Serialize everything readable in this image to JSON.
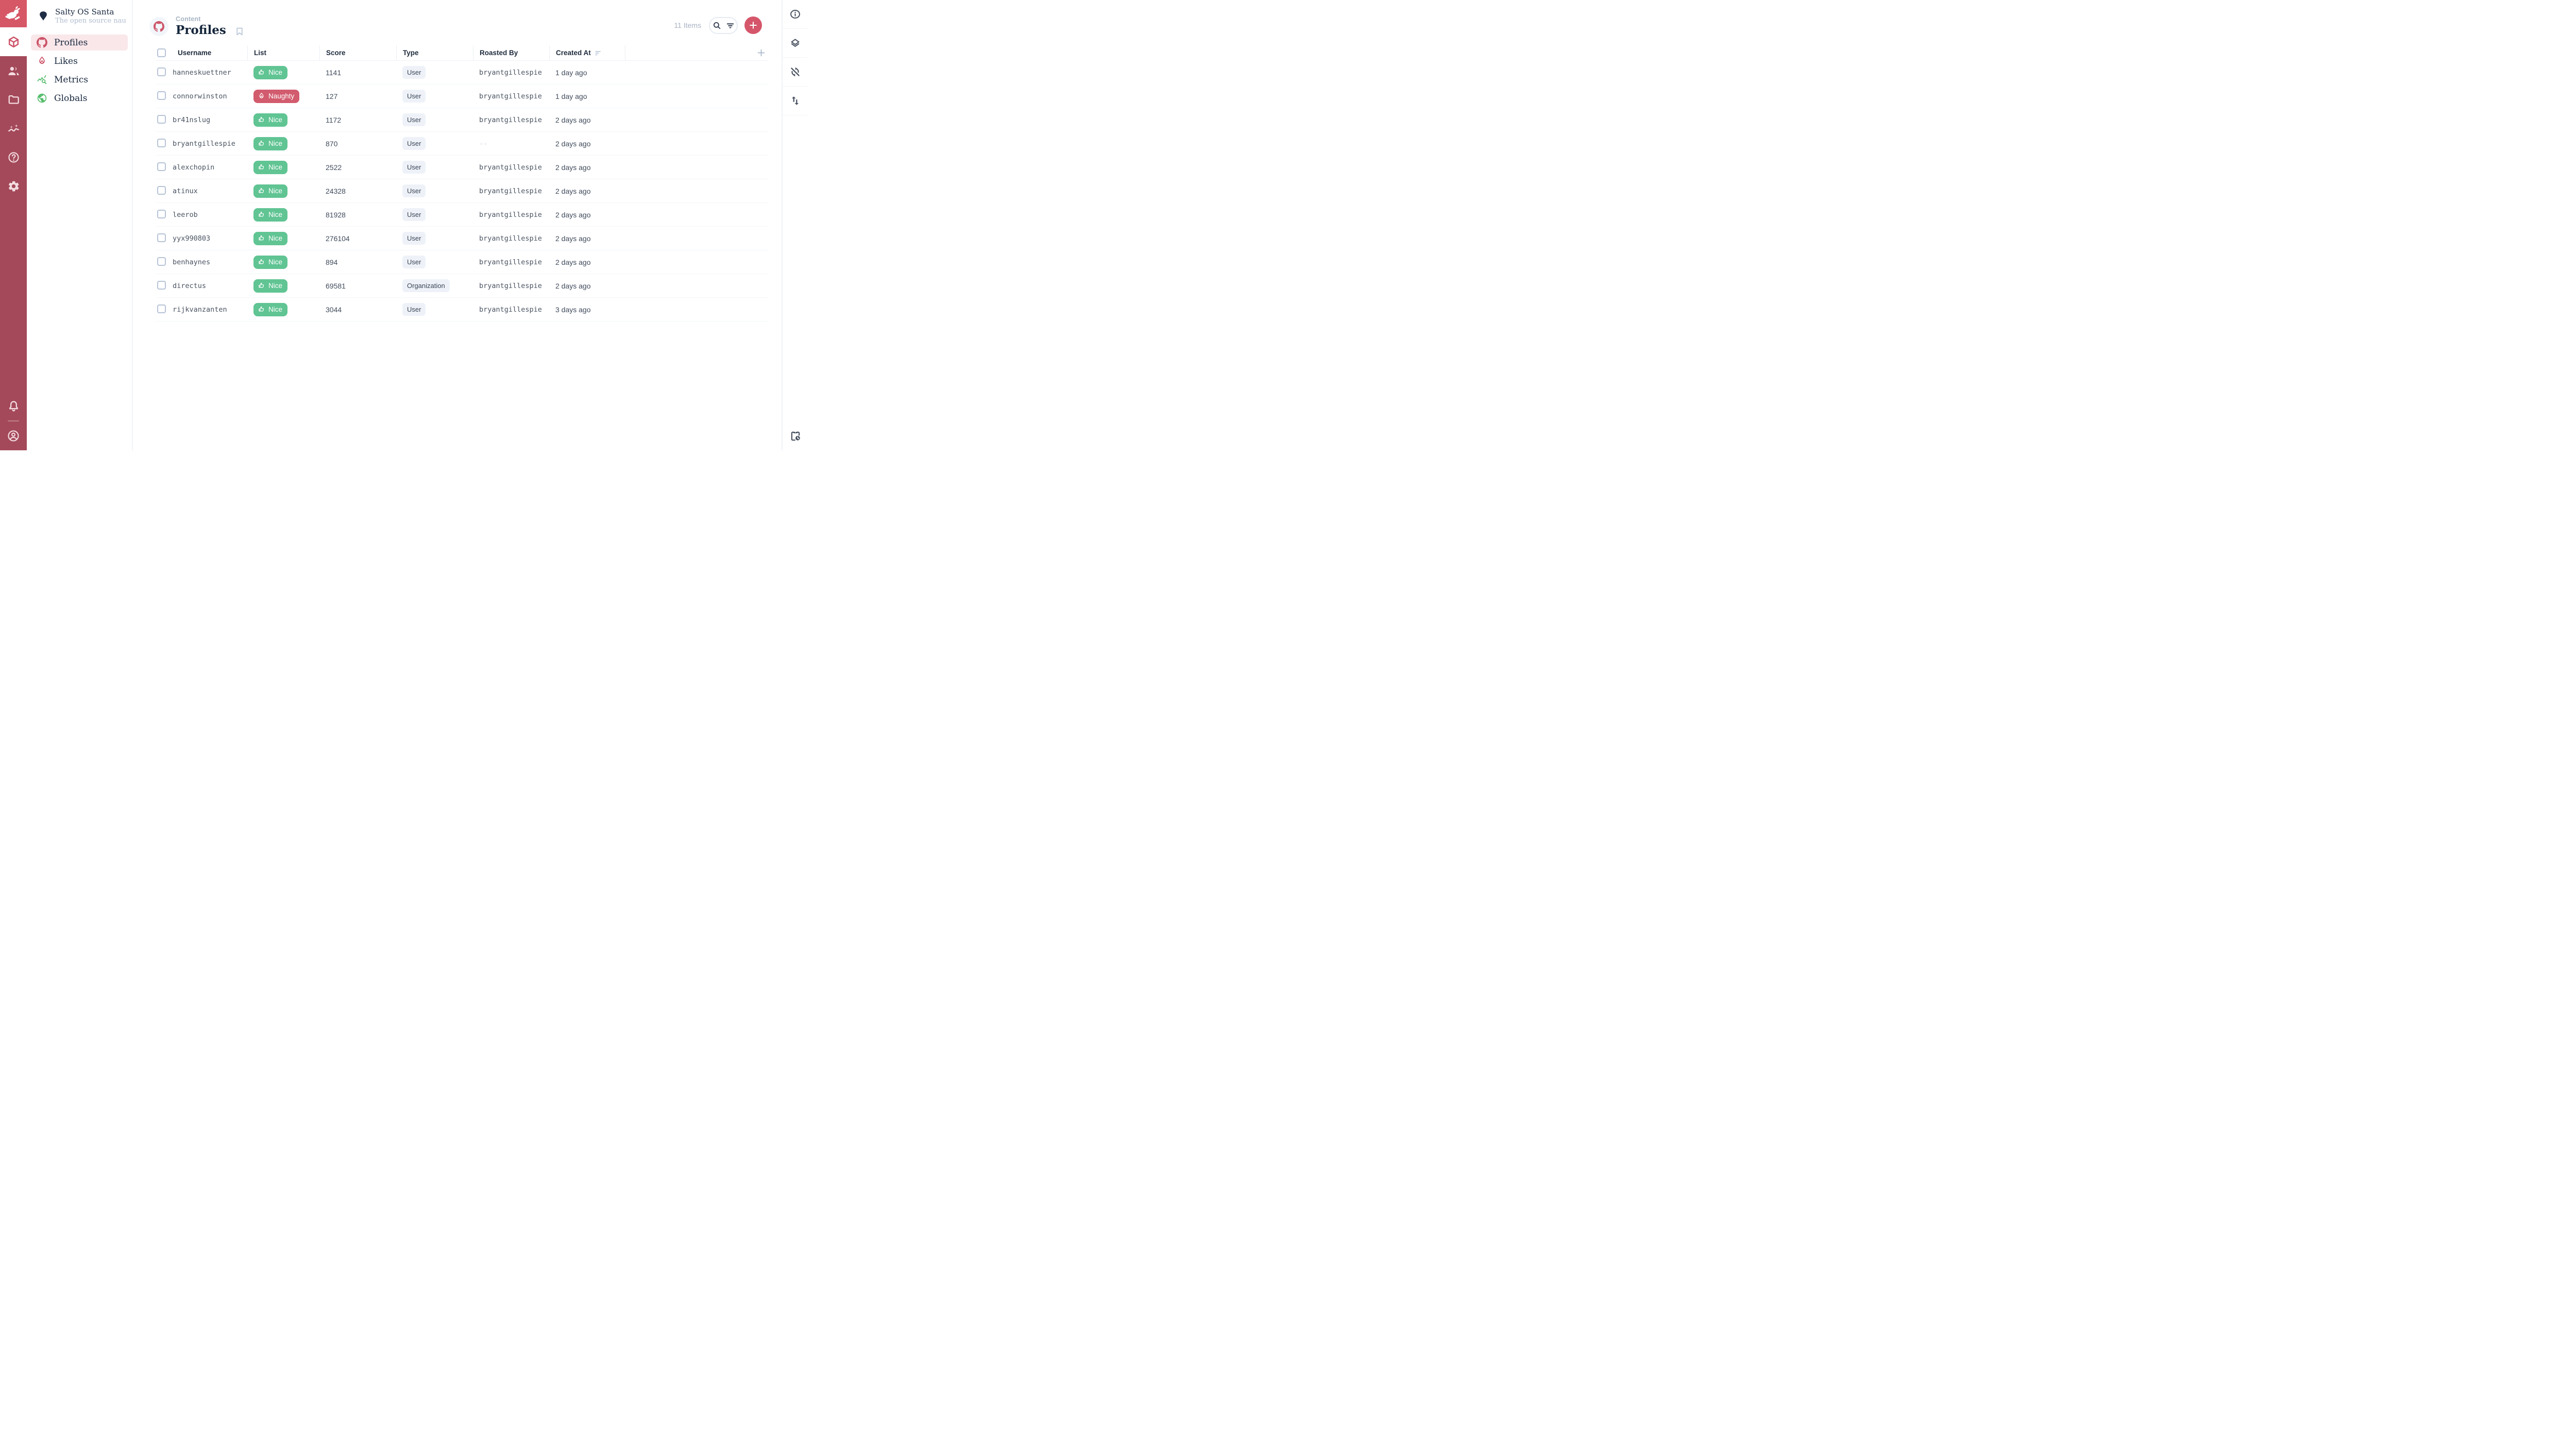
{
  "colors": {
    "module_bar_bg": "#A4495A",
    "logo_tile_bg": "#D65766",
    "accent_red": "#CC5468",
    "accent_green": "#57BE6E",
    "nav_active_bg": "#F9E7EA",
    "nice_badge_bg": "#60C493",
    "naughty_badge_bg": "#D25B6E",
    "chip_bg": "#EEF2F8",
    "add_button_bg": "#D5566A"
  },
  "module_bar": {
    "modules": [
      {
        "name": "content-module",
        "icon": "box-icon",
        "active": true
      },
      {
        "name": "user-directory-module",
        "icon": "people-icon",
        "active": false
      },
      {
        "name": "file-library-module",
        "icon": "folder-icon",
        "active": false
      },
      {
        "name": "insights-module",
        "icon": "insights-icon",
        "active": false
      },
      {
        "name": "documentation-module",
        "icon": "help-icon",
        "active": false
      },
      {
        "name": "settings-module",
        "icon": "gear-icon",
        "active": false
      }
    ],
    "bottom": [
      {
        "name": "notifications-button",
        "icon": "bell-icon"
      },
      {
        "name": "account-button",
        "icon": "account-icon"
      }
    ]
  },
  "sidebar": {
    "project_name": "Salty OS Santa",
    "project_tagline": "The open source naug...",
    "project_icon": "diamond-icon",
    "items": [
      {
        "label": "Profiles",
        "icon": "github-icon",
        "icon_color": "#CC5468",
        "active": true
      },
      {
        "label": "Likes",
        "icon": "fire-icon",
        "icon_color": "#CC5468",
        "active": false
      },
      {
        "label": "Metrics",
        "icon": "query-stats-icon",
        "icon_color": "#57BE6E",
        "active": false
      },
      {
        "label": "Globals",
        "icon": "globe-icon",
        "icon_color": "#57BE6E",
        "active": false
      }
    ]
  },
  "header": {
    "breadcrumb": "Content",
    "title": "Profiles",
    "title_icon": "github-icon",
    "items_count": "11 Items"
  },
  "table": {
    "columns": [
      {
        "label": "Username",
        "sorted": false
      },
      {
        "label": "List",
        "sorted": false
      },
      {
        "label": "Score",
        "sorted": false
      },
      {
        "label": "Type",
        "sorted": false
      },
      {
        "label": "Roasted By",
        "sorted": false
      },
      {
        "label": "Created At",
        "sorted": true
      }
    ],
    "rows": [
      {
        "username": "hanneskuettner",
        "list": "Nice",
        "score": "1141",
        "type": "User",
        "roasted_by": "bryantgillespie",
        "created_at": "1 day ago"
      },
      {
        "username": "connorwinston",
        "list": "Naughty",
        "score": "127",
        "type": "User",
        "roasted_by": "bryantgillespie",
        "created_at": "1 day ago"
      },
      {
        "username": "br41nslug",
        "list": "Nice",
        "score": "1172",
        "type": "User",
        "roasted_by": "bryantgillespie",
        "created_at": "2 days ago"
      },
      {
        "username": "bryantgillespie",
        "list": "Nice",
        "score": "870",
        "type": "User",
        "roasted_by": "--",
        "created_at": "2 days ago"
      },
      {
        "username": "alexchopin",
        "list": "Nice",
        "score": "2522",
        "type": "User",
        "roasted_by": "bryantgillespie",
        "created_at": "2 days ago"
      },
      {
        "username": "atinux",
        "list": "Nice",
        "score": "24328",
        "type": "User",
        "roasted_by": "bryantgillespie",
        "created_at": "2 days ago"
      },
      {
        "username": "leerob",
        "list": "Nice",
        "score": "81928",
        "type": "User",
        "roasted_by": "bryantgillespie",
        "created_at": "2 days ago"
      },
      {
        "username": "yyx990803",
        "list": "Nice",
        "score": "276104",
        "type": "User",
        "roasted_by": "bryantgillespie",
        "created_at": "2 days ago"
      },
      {
        "username": "benhaynes",
        "list": "Nice",
        "score": "894",
        "type": "User",
        "roasted_by": "bryantgillespie",
        "created_at": "2 days ago"
      },
      {
        "username": "directus",
        "list": "Nice",
        "score": "69581",
        "type": "Organization",
        "roasted_by": "bryantgillespie",
        "created_at": "2 days ago"
      },
      {
        "username": "rijkvanzanten",
        "list": "Nice",
        "score": "3044",
        "type": "User",
        "roasted_by": "bryantgillespie",
        "created_at": "3 days ago"
      }
    ]
  },
  "badges": {
    "Nice": {
      "bg": "#60C493",
      "icon": "thumb-up-icon"
    },
    "Naughty": {
      "bg": "#D25B6E",
      "icon": "flame-icon"
    }
  },
  "right_sidebar": {
    "buttons": [
      {
        "name": "info-button",
        "icon": "info-icon"
      },
      {
        "name": "layers-button",
        "icon": "layers-icon"
      },
      {
        "name": "sync-disabled-button",
        "icon": "sync-disabled-icon"
      },
      {
        "name": "import-export-button",
        "icon": "import-export-icon"
      }
    ],
    "bottom_button": {
      "name": "activity-button",
      "icon": "pending-actions-icon"
    }
  }
}
